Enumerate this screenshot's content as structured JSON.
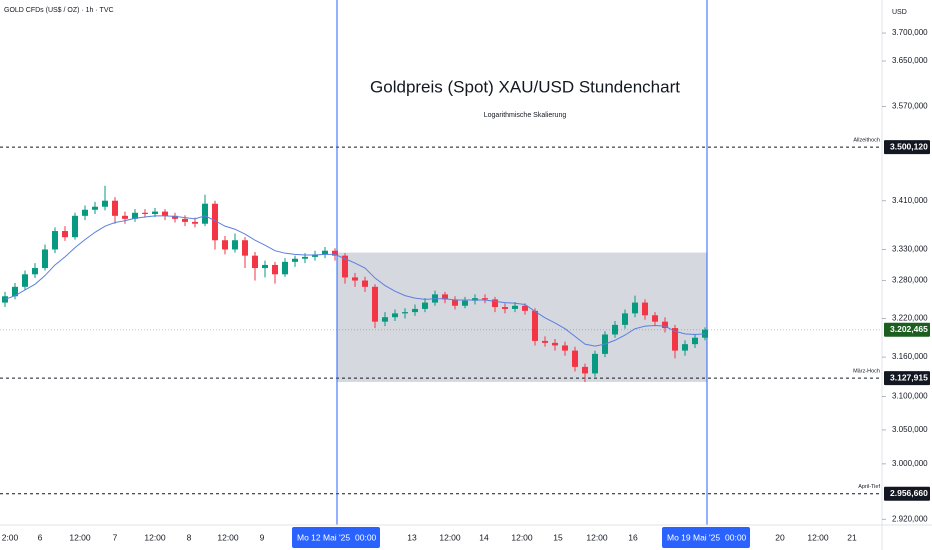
{
  "chart_data": {
    "type": "candlestick",
    "title": "Goldpreis (Spot) XAU/USD Stundenchart",
    "subtitle": "Logarithmische Skalierung",
    "symbol": "GOLD CFDs (US$ / OZ) · 1h · TVC",
    "currency": "USD",
    "log_scale": true,
    "ylim": [
      2912,
      3760
    ],
    "yticks": [
      {
        "value": 3700,
        "label": "3.700,000"
      },
      {
        "value": 3650,
        "label": "3.650,000"
      },
      {
        "value": 3570,
        "label": "3.570,000"
      },
      {
        "value": 3410,
        "label": "3.410,000"
      },
      {
        "value": 3330,
        "label": "3.330,000"
      },
      {
        "value": 3280,
        "label": "3.280,000"
      },
      {
        "value": 3220,
        "label": "3.220,000"
      },
      {
        "value": 3160,
        "label": "3.160,000"
      },
      {
        "value": 3100,
        "label": "3.100,000"
      },
      {
        "value": 3050,
        "label": "3.050,000"
      },
      {
        "value": 3000,
        "label": "3.000,000"
      },
      {
        "value": 2920,
        "label": "2.920,000"
      }
    ],
    "x_labels": [
      "2:00",
      "6",
      "12:00",
      "7",
      "12:00",
      "8",
      "12:00",
      "9",
      "13",
      "12:00",
      "14",
      "12:00",
      "15",
      "12:00",
      "16",
      "20",
      "12:00",
      "21"
    ],
    "markers": [
      {
        "date": "Mo 12 Mai '25",
        "time": "00:00",
        "color": "#2962ff"
      },
      {
        "date": "Mo 19 Mai '25",
        "time": "00:00",
        "color": "#2962ff"
      }
    ],
    "range_box": {
      "top": 3325,
      "bottom": 3122,
      "color": "#d1d4dc"
    },
    "levels": [
      {
        "value": 3500.12,
        "label": "3.500,120",
        "text": "Allzeithoch"
      },
      {
        "value": 3127.915,
        "label": "3.127,915",
        "text": "März-Hoch"
      },
      {
        "value": 2956.66,
        "label": "2.956,660",
        "text": "April-Tief"
      }
    ],
    "last_price": {
      "value": 3202.465,
      "label": "3.202,465",
      "color": "#1b5e20"
    },
    "series": [
      {
        "type": "candlestick",
        "up_color": "#089981",
        "down_color": "#f23645",
        "values": [
          [
            3245,
            3262,
            3238,
            3255
          ],
          [
            3255,
            3276,
            3250,
            3270
          ],
          [
            3270,
            3296,
            3265,
            3290
          ],
          [
            3290,
            3308,
            3284,
            3300
          ],
          [
            3300,
            3338,
            3296,
            3330
          ],
          [
            3330,
            3366,
            3324,
            3360
          ],
          [
            3360,
            3368,
            3344,
            3350
          ],
          [
            3350,
            3390,
            3346,
            3385
          ],
          [
            3385,
            3402,
            3378,
            3395
          ],
          [
            3395,
            3408,
            3388,
            3400
          ],
          [
            3400,
            3435,
            3394,
            3410
          ],
          [
            3410,
            3416,
            3372,
            3385
          ],
          [
            3385,
            3392,
            3372,
            3380
          ],
          [
            3380,
            3396,
            3375,
            3390
          ],
          [
            3390,
            3396,
            3382,
            3388
          ],
          [
            3388,
            3398,
            3383,
            3392
          ],
          [
            3392,
            3396,
            3378,
            3385
          ],
          [
            3385,
            3390,
            3374,
            3380
          ],
          [
            3380,
            3386,
            3368,
            3375
          ],
          [
            3375,
            3382,
            3366,
            3372
          ],
          [
            3372,
            3420,
            3368,
            3405
          ],
          [
            3405,
            3410,
            3330,
            3345
          ],
          [
            3345,
            3352,
            3322,
            3330
          ],
          [
            3330,
            3356,
            3325,
            3345
          ],
          [
            3345,
            3350,
            3300,
            3320
          ],
          [
            3320,
            3326,
            3280,
            3300
          ],
          [
            3300,
            3312,
            3285,
            3305
          ],
          [
            3305,
            3310,
            3275,
            3290
          ],
          [
            3290,
            3316,
            3286,
            3310
          ],
          [
            3310,
            3320,
            3302,
            3315
          ],
          [
            3315,
            3324,
            3308,
            3318
          ],
          [
            3318,
            3328,
            3312,
            3322
          ],
          [
            3322,
            3334,
            3316,
            3328
          ],
          [
            3328,
            3332,
            3312,
            3320
          ],
          [
            3320,
            3324,
            3275,
            3285
          ],
          [
            3285,
            3292,
            3270,
            3280
          ],
          [
            3280,
            3286,
            3262,
            3270
          ],
          [
            3270,
            3274,
            3205,
            3215
          ],
          [
            3215,
            3230,
            3208,
            3222
          ],
          [
            3222,
            3234,
            3216,
            3228
          ],
          [
            3228,
            3236,
            3220,
            3230
          ],
          [
            3230,
            3242,
            3224,
            3235
          ],
          [
            3235,
            3252,
            3230,
            3245
          ],
          [
            3245,
            3264,
            3240,
            3258
          ],
          [
            3258,
            3262,
            3244,
            3250
          ],
          [
            3250,
            3255,
            3234,
            3240
          ],
          [
            3240,
            3254,
            3236,
            3248
          ],
          [
            3248,
            3258,
            3242,
            3252
          ],
          [
            3252,
            3258,
            3244,
            3250
          ],
          [
            3250,
            3254,
            3230,
            3238
          ],
          [
            3238,
            3244,
            3228,
            3235
          ],
          [
            3235,
            3246,
            3230,
            3240
          ],
          [
            3240,
            3244,
            3226,
            3232
          ],
          [
            3232,
            3236,
            3178,
            3185
          ],
          [
            3185,
            3192,
            3176,
            3182
          ],
          [
            3182,
            3188,
            3170,
            3178
          ],
          [
            3178,
            3184,
            3162,
            3170
          ],
          [
            3170,
            3176,
            3138,
            3145
          ],
          [
            3145,
            3150,
            3122,
            3135
          ],
          [
            3135,
            3170,
            3130,
            3165
          ],
          [
            3165,
            3200,
            3160,
            3195
          ],
          [
            3195,
            3216,
            3190,
            3210
          ],
          [
            3210,
            3234,
            3204,
            3228
          ],
          [
            3228,
            3256,
            3222,
            3245
          ],
          [
            3245,
            3250,
            3218,
            3225
          ],
          [
            3225,
            3230,
            3208,
            3215
          ],
          [
            3215,
            3222,
            3198,
            3205
          ],
          [
            3205,
            3210,
            3158,
            3170
          ],
          [
            3170,
            3186,
            3162,
            3180
          ],
          [
            3180,
            3196,
            3174,
            3190
          ],
          [
            3190,
            3206,
            3186,
            3202.465
          ]
        ]
      },
      {
        "type": "line",
        "color": "#5b7fe0",
        "values": [
          3250,
          3256,
          3265,
          3274,
          3288,
          3305,
          3318,
          3333,
          3346,
          3358,
          3368,
          3374,
          3377,
          3381,
          3383,
          3385,
          3385,
          3384,
          3382,
          3380,
          3385,
          3377,
          3368,
          3363,
          3355,
          3345,
          3337,
          3328,
          3324,
          3322,
          3321,
          3321,
          3322,
          3322,
          3315,
          3308,
          3300,
          3284,
          3272,
          3263,
          3256,
          3252,
          3250,
          3251,
          3251,
          3249,
          3249,
          3249,
          3249,
          3247,
          3245,
          3244,
          3242,
          3231,
          3221,
          3213,
          3204,
          3192,
          3180,
          3177,
          3180,
          3186,
          3194,
          3204,
          3208,
          3209,
          3208,
          3200,
          3196,
          3195,
          3196
        ]
      }
    ]
  }
}
